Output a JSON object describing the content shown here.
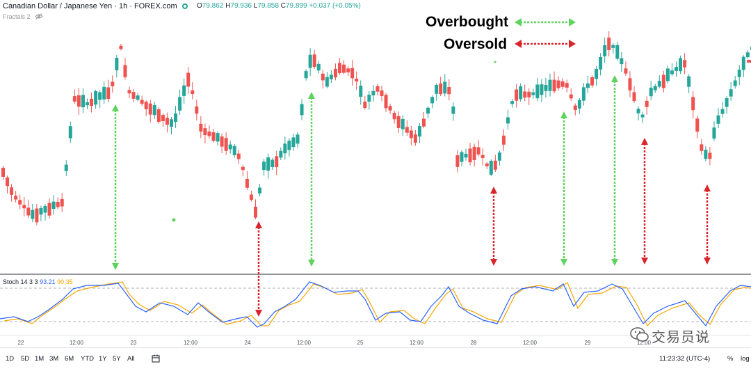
{
  "header": {
    "symbol": "Canadian Dollar / Japanese Yen · 1h · FOREX.com",
    "ohlc": {
      "o_label": "O",
      "o": "79.862",
      "h_label": "H",
      "h": "79.936",
      "l_label": "L",
      "l": "79.858",
      "c_label": "C",
      "c": "79.899",
      "change": "+0.037 (+0.05%)"
    }
  },
  "indicator": {
    "label": "Fractals 2"
  },
  "legend": {
    "overbought": "Overbought",
    "oversold": "Oversold"
  },
  "stoch": {
    "label": "Stoch 14 3 3",
    "k": "93.21",
    "d": "90.35"
  },
  "xaxis": {
    "ticks": [
      "22",
      "12:00",
      "23",
      "12:00",
      "24",
      "12:00",
      "25",
      "12:00",
      "28",
      "12:00",
      "29",
      "12:00"
    ]
  },
  "toolbar": {
    "timeframes": [
      "1D",
      "5D",
      "1M",
      "3M",
      "6M",
      "YTD",
      "1Y",
      "5Y",
      "All"
    ],
    "clock": "11:23:32 (UTC-4)",
    "percent": "%",
    "log": "log"
  },
  "watermark": {
    "text": "交易员说"
  },
  "colors": {
    "up": "#26a69a",
    "down": "#ef5350",
    "overbought": "#5fd35f",
    "oversold": "#d9252c",
    "k_line": "#2962ff",
    "d_line": "#f7a600"
  }
}
